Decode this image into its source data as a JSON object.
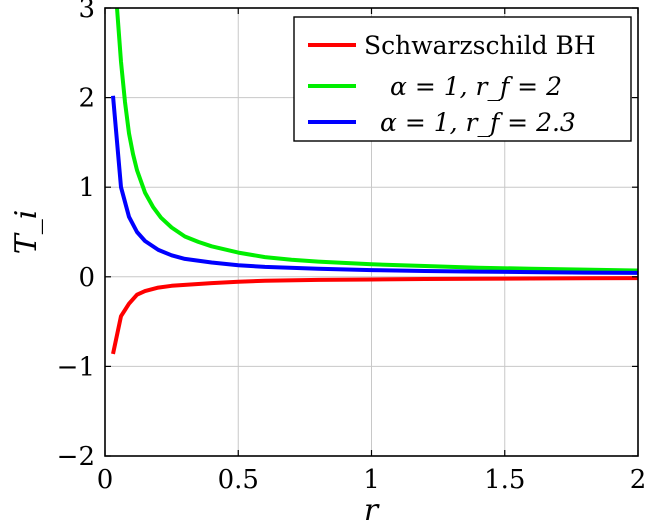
{
  "chart_data": {
    "type": "line",
    "xlabel": "r",
    "ylabel": "T_i",
    "xlim": [
      0,
      2
    ],
    "ylim": [
      -2,
      3
    ],
    "xticks": [
      0,
      0.5,
      1,
      1.5,
      2
    ],
    "xtick_labels": [
      "0",
      "0.5",
      "1",
      "1.5",
      "2"
    ],
    "yticks": [
      -2,
      -1,
      0,
      1,
      2,
      3
    ],
    "ytick_labels": [
      "−2",
      "−1",
      "0",
      "1",
      "2",
      "3"
    ],
    "grid": true,
    "legend_position": "top-right",
    "series": [
      {
        "name": "Schwarzschild BH",
        "color": "#ff0000",
        "x": [
          0.03,
          0.06,
          0.09,
          0.12,
          0.15,
          0.2,
          0.25,
          0.3,
          0.4,
          0.5,
          0.6,
          0.8,
          1.0,
          1.2,
          1.4,
          1.6,
          1.8,
          2.0
        ],
        "y": [
          -0.86,
          -0.44,
          -0.3,
          -0.2,
          -0.16,
          -0.12,
          -0.1,
          -0.09,
          -0.07,
          -0.055,
          -0.045,
          -0.035,
          -0.03,
          -0.025,
          -0.021,
          -0.019,
          -0.017,
          -0.015
        ]
      },
      {
        "name": "α = 1, r_f = 2",
        "color": "#00ee00",
        "x": [
          0.045,
          0.06,
          0.075,
          0.09,
          0.105,
          0.12,
          0.15,
          0.18,
          0.21,
          0.25,
          0.3,
          0.35,
          0.4,
          0.5,
          0.6,
          0.7,
          0.8,
          1.0,
          1.2,
          1.4,
          1.6,
          1.8,
          2.0
        ],
        "y": [
          3.0,
          2.4,
          1.95,
          1.6,
          1.37,
          1.19,
          0.94,
          0.78,
          0.66,
          0.55,
          0.45,
          0.39,
          0.34,
          0.27,
          0.22,
          0.19,
          0.17,
          0.14,
          0.12,
          0.1,
          0.09,
          0.08,
          0.07
        ]
      },
      {
        "name": "α = 1, r_f = 2.3",
        "color": "#0000ff",
        "x": [
          0.03,
          0.06,
          0.09,
          0.12,
          0.15,
          0.2,
          0.25,
          0.3,
          0.4,
          0.5,
          0.6,
          0.8,
          1.0,
          1.2,
          1.4,
          1.6,
          1.8,
          2.0
        ],
        "y": [
          2.02,
          1.0,
          0.67,
          0.5,
          0.4,
          0.3,
          0.24,
          0.2,
          0.16,
          0.13,
          0.11,
          0.09,
          0.075,
          0.065,
          0.058,
          0.052,
          0.047,
          0.043
        ]
      }
    ]
  }
}
